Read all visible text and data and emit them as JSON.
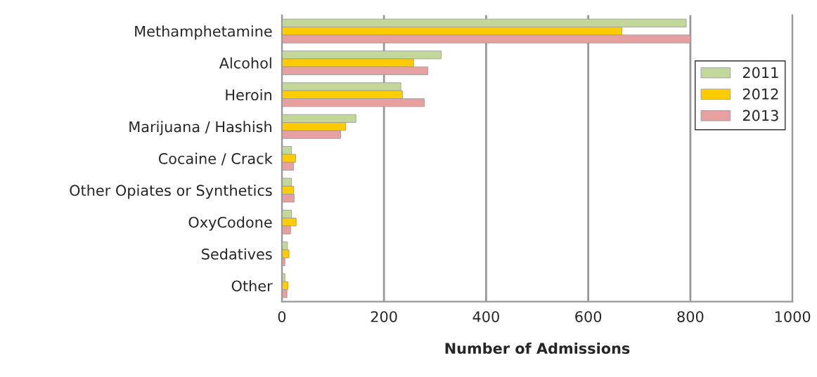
{
  "chart_data": {
    "type": "bar",
    "orientation": "horizontal",
    "xlabel": "Number of Admissions",
    "categories": [
      "Methamphetamine",
      "Alcohol",
      "Heroin",
      "Marijuana / Hashish",
      "Cocaine / Crack",
      "Other Opiates or Synthetics",
      "OxyCodone",
      "Sedatives",
      "Other"
    ],
    "series": [
      {
        "name": "2011",
        "color": "#c4d79b",
        "values": [
          792,
          312,
          233,
          145,
          19,
          19,
          19,
          11,
          6
        ]
      },
      {
        "name": "2012",
        "color": "#ffcc00",
        "values": [
          666,
          258,
          236,
          125,
          27,
          23,
          28,
          14,
          12
        ]
      },
      {
        "name": "2013",
        "color": "#e6a0a0",
        "values": [
          800,
          286,
          279,
          115,
          23,
          24,
          17,
          6,
          10
        ]
      }
    ],
    "xlim": [
      0,
      1000
    ],
    "xticks": [
      0,
      200,
      400,
      600,
      800,
      1000
    ],
    "grid": "x",
    "legend": "right"
  }
}
